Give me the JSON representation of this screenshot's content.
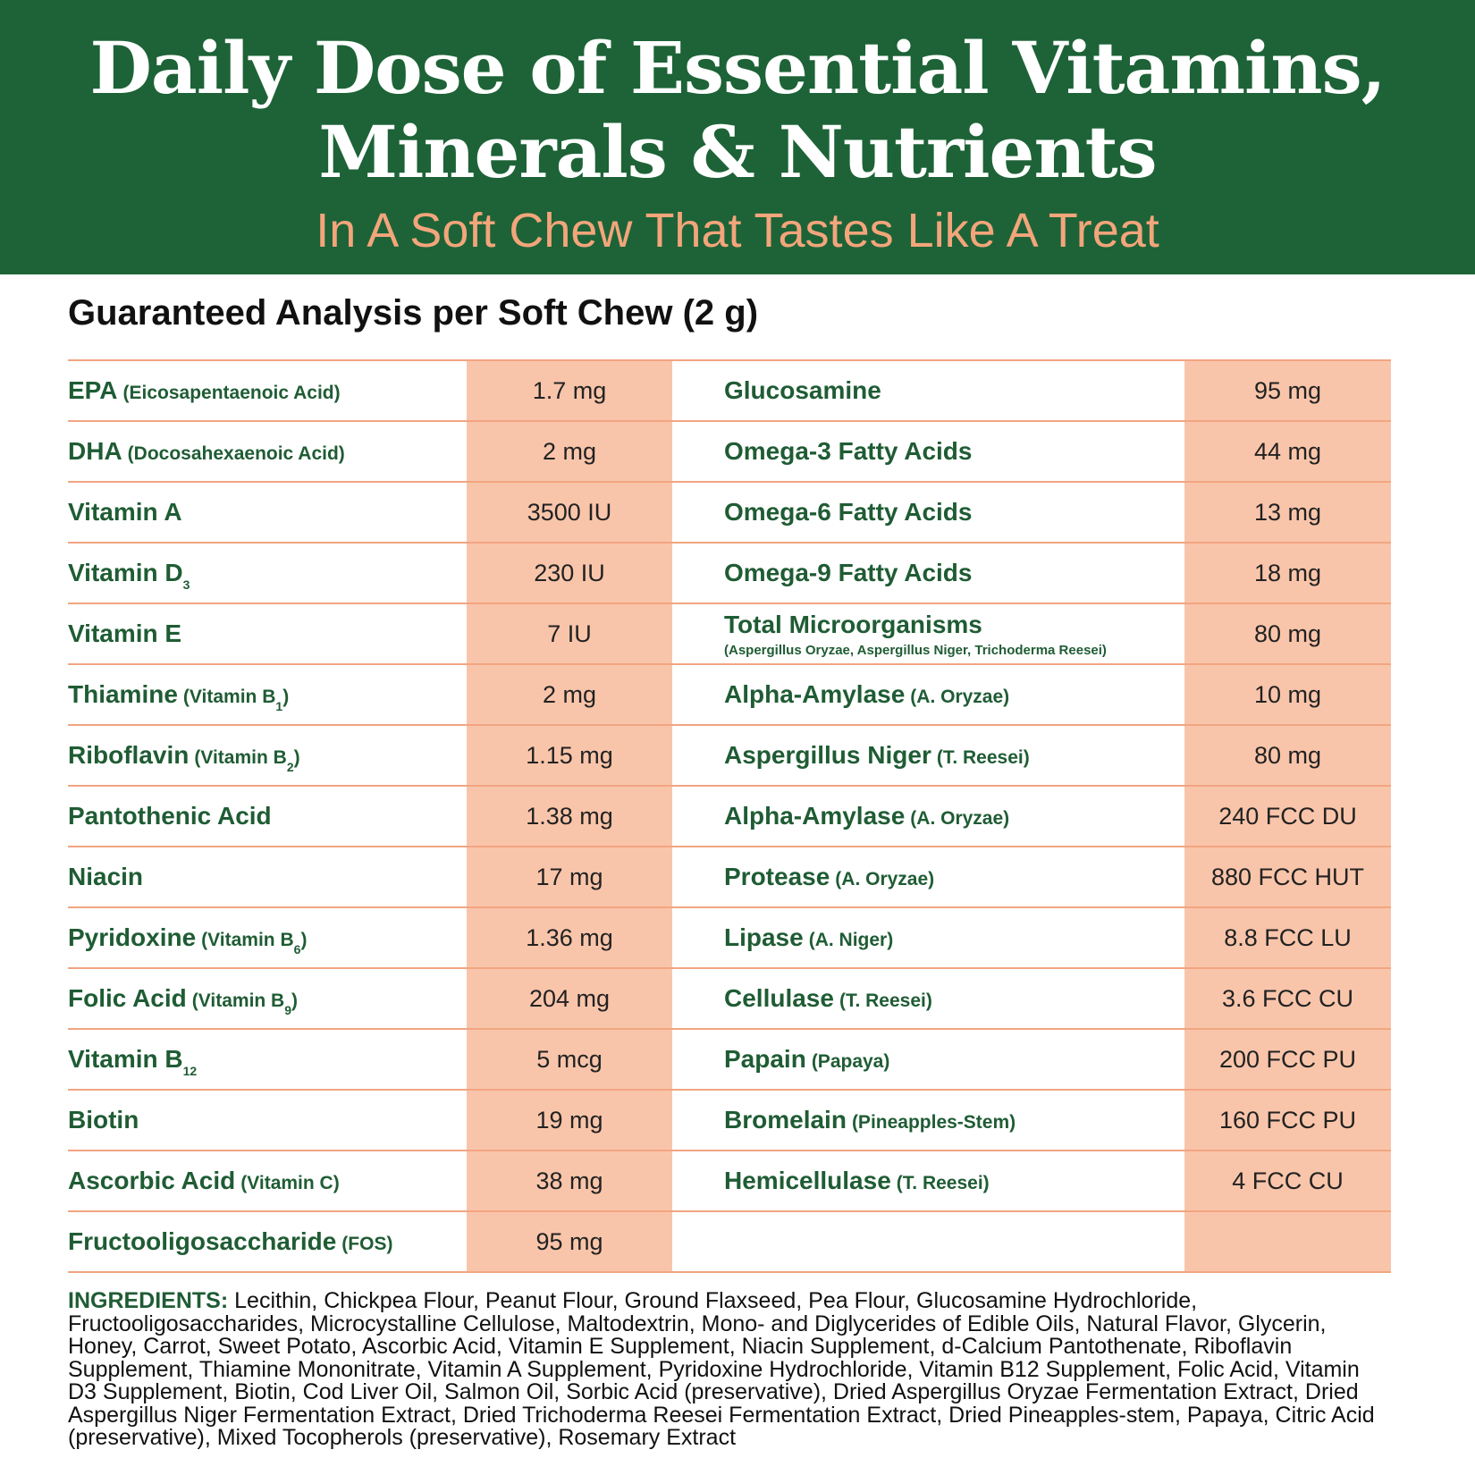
{
  "header": {
    "title_lines": [
      "Daily Dose of Essential Vitamins,",
      "Minerals & Nutrients"
    ],
    "subtitle": "In A Soft Chew That Tastes Like A Treat"
  },
  "analysis": {
    "heading": "Guaranteed Analysis per Soft Chew (2 g)",
    "left": [
      {
        "label": [
          {
            "text": "EPA",
            "style": "main"
          },
          {
            "text": "(Eicosapentaenoic Acid)",
            "style": "small"
          }
        ],
        "value": "1.7 mg"
      },
      {
        "label": [
          {
            "text": "DHA",
            "style": "main"
          },
          {
            "text": "(Docosahexaenoic Acid)",
            "style": "small"
          }
        ],
        "value": "2 mg"
      },
      {
        "label": [
          {
            "text": "Vitamin A",
            "style": "main"
          }
        ],
        "value": "3500 IU"
      },
      {
        "label": [
          {
            "text": "Vitamin D",
            "style": "main"
          },
          {
            "text": "3",
            "style": "sub"
          }
        ],
        "value": "230 IU"
      },
      {
        "label": [
          {
            "text": "Vitamin E",
            "style": "main"
          }
        ],
        "value": "7 IU"
      },
      {
        "label": [
          {
            "text": "Thiamine",
            "style": "main"
          },
          {
            "text": "(Vitamin B",
            "style": "small"
          },
          {
            "text": "1",
            "style": "sub"
          },
          {
            "text": ")",
            "style": "tail"
          }
        ],
        "value": "2 mg"
      },
      {
        "label": [
          {
            "text": "Riboflavin",
            "style": "main"
          },
          {
            "text": "(Vitamin B",
            "style": "small"
          },
          {
            "text": "2",
            "style": "sub"
          },
          {
            "text": ")",
            "style": "tail"
          }
        ],
        "value": "1.15 mg"
      },
      {
        "label": [
          {
            "text": "Pantothenic Acid",
            "style": "main"
          }
        ],
        "value": "1.38 mg"
      },
      {
        "label": [
          {
            "text": "Niacin",
            "style": "main"
          }
        ],
        "value": "17 mg"
      },
      {
        "label": [
          {
            "text": "Pyridoxine",
            "style": "main"
          },
          {
            "text": "(Vitamin B",
            "style": "small"
          },
          {
            "text": "6",
            "style": "sub"
          },
          {
            "text": ")",
            "style": "tail"
          }
        ],
        "value": "1.36 mg"
      },
      {
        "label": [
          {
            "text": "Folic Acid",
            "style": "main"
          },
          {
            "text": "(Vitamin B",
            "style": "small"
          },
          {
            "text": "9",
            "style": "sub"
          },
          {
            "text": ")",
            "style": "tail"
          }
        ],
        "value": "204 mg"
      },
      {
        "label": [
          {
            "text": "Vitamin B",
            "style": "main"
          },
          {
            "text": "12",
            "style": "sub"
          }
        ],
        "value": "5 mcg"
      },
      {
        "label": [
          {
            "text": "Biotin",
            "style": "main"
          }
        ],
        "value": "19 mg"
      },
      {
        "label": [
          {
            "text": "Ascorbic Acid",
            "style": "main"
          },
          {
            "text": "(Vitamin C)",
            "style": "small"
          }
        ],
        "value": "38 mg"
      },
      {
        "label": [
          {
            "text": "Fructooligosaccharide",
            "style": "main"
          },
          {
            "text": "(FOS)",
            "style": "small"
          }
        ],
        "value": "95 mg"
      }
    ],
    "right": [
      {
        "label": [
          {
            "text": "Glucosamine",
            "style": "main"
          }
        ],
        "value": "95 mg"
      },
      {
        "label": [
          {
            "text": "Omega-3 Fatty Acids",
            "style": "main"
          }
        ],
        "value": "44 mg"
      },
      {
        "label": [
          {
            "text": "Omega-6 Fatty Acids",
            "style": "main"
          }
        ],
        "value": "13 mg"
      },
      {
        "label": [
          {
            "text": "Omega-9 Fatty Acids",
            "style": "main"
          }
        ],
        "value": "18 mg"
      },
      {
        "label": [
          {
            "text": "Total Microorganisms",
            "style": "main"
          },
          {
            "text": "(Aspergillus Oryzae, Aspergillus Niger, Trichoderma Reesei)",
            "style": "note"
          }
        ],
        "value": "80 mg"
      },
      {
        "label": [
          {
            "text": "Alpha-Amylase",
            "style": "main"
          },
          {
            "text": "(A. Oryzae)",
            "style": "small"
          }
        ],
        "value": "10 mg"
      },
      {
        "label": [
          {
            "text": "Aspergillus Niger",
            "style": "main"
          },
          {
            "text": "(T. Reesei)",
            "style": "small"
          }
        ],
        "value": "80 mg"
      },
      {
        "label": [
          {
            "text": "Alpha-Amylase",
            "style": "main"
          },
          {
            "text": "(A. Oryzae)",
            "style": "small"
          }
        ],
        "value": "240 FCC DU"
      },
      {
        "label": [
          {
            "text": "Protease",
            "style": "main"
          },
          {
            "text": "(A. Oryzae)",
            "style": "small"
          }
        ],
        "value": "880 FCC HUT"
      },
      {
        "label": [
          {
            "text": "Lipase",
            "style": "main"
          },
          {
            "text": "(A. Niger)",
            "style": "small"
          }
        ],
        "value": "8.8 FCC LU"
      },
      {
        "label": [
          {
            "text": "Cellulase",
            "style": "main"
          },
          {
            "text": "(T. Reesei)",
            "style": "small"
          }
        ],
        "value": "3.6 FCC CU"
      },
      {
        "label": [
          {
            "text": "Papain",
            "style": "main"
          },
          {
            "text": "(Papaya)",
            "style": "small"
          }
        ],
        "value": "200 FCC PU"
      },
      {
        "label": [
          {
            "text": "Bromelain",
            "style": "main"
          },
          {
            "text": "(Pineapples-Stem)",
            "style": "small"
          }
        ],
        "value": "160 FCC PU"
      },
      {
        "label": [
          {
            "text": "Hemicellulase",
            "style": "main"
          },
          {
            "text": "(T. Reesei)",
            "style": "small"
          }
        ],
        "value": "4 FCC CU"
      }
    ]
  },
  "ingredients": {
    "label": "INGREDIENTS:",
    "text": "Lecithin, Chickpea Flour, Peanut Flour, Ground Flaxseed, Pea Flour, Glucosamine Hydrochloride, Fructooligosaccharides, Microcystalline Cellulose, Maltodextrin, Mono- and Diglycerides of Edible Oils, Natural Flavor, Glycerin, Honey, Carrot, Sweet Potato, Ascorbic Acid, Vitamin E Supplement, Niacin Supplement, d-Calcium Pantothenate, Riboflavin Supplement, Thiamine Mononitrate, Vitamin A Supplement, Pyridoxine Hydrochloride, Vitamin B12 Supplement, Folic Acid, Vitamin D3 Supplement, Biotin, Cod Liver Oil, Salmon Oil, Sorbic Acid (preservative), Dried Aspergillus Oryzae Fermentation Extract, Dried Aspergillus Niger Fermentation Extract, Dried Trichoderma Reesei Fermentation Extract, Dried Pineapples-stem, Papaya, Citric Acid (preservative), Mixed Tocopherols (preservative), Rosemary Extract"
  }
}
